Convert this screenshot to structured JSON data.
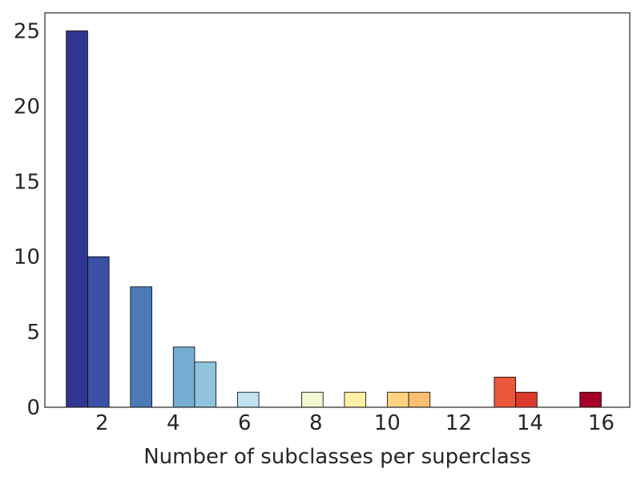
{
  "chart_data": {
    "type": "bar",
    "title": "",
    "xlabel": "Number of subclasses per superclass",
    "ylabel": "",
    "xlim": [
      0.4,
      16.8
    ],
    "ylim": [
      0,
      26.2
    ],
    "xticks": [
      2,
      4,
      6,
      8,
      10,
      12,
      14,
      16
    ],
    "yticks": [
      0,
      5,
      10,
      15,
      20,
      25
    ],
    "grid": false,
    "legend": "none",
    "bin_width": 0.6,
    "bins": [
      {
        "x": 1.3,
        "value": 25,
        "color": "#313695"
      },
      {
        "x": 1.9,
        "value": 10,
        "color": "#3b51a3"
      },
      {
        "x": 2.5,
        "value": 0,
        "color": "#4a74b4"
      },
      {
        "x": 3.1,
        "value": 8,
        "color": "#4a7ab8"
      },
      {
        "x": 3.7,
        "value": 0,
        "color": "#5e9ec9"
      },
      {
        "x": 4.3,
        "value": 4,
        "color": "#74add1"
      },
      {
        "x": 4.9,
        "value": 3,
        "color": "#8fc3de"
      },
      {
        "x": 5.5,
        "value": 0,
        "color": "#abd9e9"
      },
      {
        "x": 6.1,
        "value": 1,
        "color": "#c0e3ef"
      },
      {
        "x": 6.7,
        "value": 0,
        "color": "#e0f3f8"
      },
      {
        "x": 7.3,
        "value": 0,
        "color": "#f3fbd8"
      },
      {
        "x": 7.9,
        "value": 1,
        "color": "#f1f9d2"
      },
      {
        "x": 8.5,
        "value": 0,
        "color": "#ffffbf"
      },
      {
        "x": 9.1,
        "value": 1,
        "color": "#fdf0a6"
      },
      {
        "x": 9.7,
        "value": 0,
        "color": "#fee090"
      },
      {
        "x": 10.3,
        "value": 1,
        "color": "#fdd382"
      },
      {
        "x": 10.9,
        "value": 1,
        "color": "#fdbe70"
      },
      {
        "x": 11.5,
        "value": 0,
        "color": "#fdae61"
      },
      {
        "x": 12.1,
        "value": 0,
        "color": "#f99153"
      },
      {
        "x": 12.7,
        "value": 0,
        "color": "#f46d43"
      },
      {
        "x": 13.3,
        "value": 2,
        "color": "#ea5739"
      },
      {
        "x": 13.9,
        "value": 1,
        "color": "#da3a2c"
      },
      {
        "x": 14.5,
        "value": 0,
        "color": "#d73027"
      },
      {
        "x": 15.1,
        "value": 0,
        "color": "#be1827"
      },
      {
        "x": 15.7,
        "value": 1,
        "color": "#a50026"
      }
    ]
  }
}
